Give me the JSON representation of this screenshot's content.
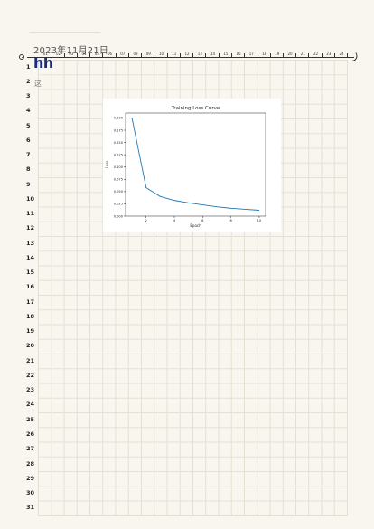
{
  "page": {
    "date": "2023年11月21日",
    "handwriting_line1": "hh",
    "handwriting_line2": "这"
  },
  "ruler": {
    "labels": [
      "01",
      "02",
      "03",
      "04",
      "05",
      "06",
      "07",
      "08",
      "09",
      "10",
      "11",
      "12",
      "13",
      "14",
      "15",
      "16",
      "17",
      "18",
      "19",
      "20",
      "21",
      "22",
      "23",
      "24"
    ]
  },
  "rows": [
    "1",
    "2",
    "3",
    "4",
    "5",
    "6",
    "7",
    "8",
    "9",
    "10",
    "11",
    "12",
    "13",
    "14",
    "15",
    "16",
    "17",
    "18",
    "19",
    "20",
    "21",
    "22",
    "23",
    "24",
    "25",
    "26",
    "27",
    "28",
    "29",
    "30",
    "31"
  ],
  "chart_data": {
    "type": "line",
    "title": "Training Loss Curve",
    "xlabel": "Epoch",
    "ylabel": "Loss",
    "x": [
      1,
      2,
      3,
      4,
      5,
      6,
      7,
      8,
      9,
      10
    ],
    "series": [
      {
        "values": [
          0.2,
          0.058,
          0.04,
          0.032,
          0.027,
          0.023,
          0.019,
          0.016,
          0.014,
          0.012
        ],
        "color": "#1f77b4"
      }
    ],
    "xticks": [
      "2",
      "4",
      "6",
      "8",
      "10"
    ],
    "yticks": [
      "0.000",
      "0.025",
      "0.050",
      "0.075",
      "0.100",
      "0.125",
      "0.150",
      "0.175",
      "0.200"
    ],
    "xlim": [
      0.55,
      10.45
    ],
    "ylim": [
      0.0,
      0.21
    ],
    "grid": false
  }
}
